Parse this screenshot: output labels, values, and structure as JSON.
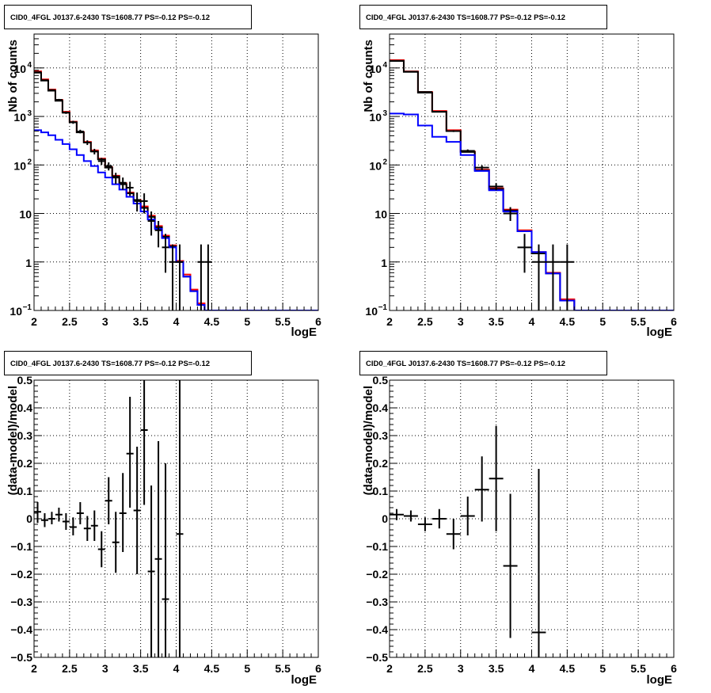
{
  "chart_data": [
    {
      "type": "step-histogram",
      "title": "CID0_4FGL J0137.6-2430 TS=1608.77 PS=-0.12 PS=-0.12",
      "xlabel": "logE",
      "ylabel": "Nb of counts",
      "xlim": [
        2,
        6
      ],
      "ylim": [
        0.1,
        50000
      ],
      "yscale": "log",
      "grid": true,
      "x_ticks": [
        "2",
        "2.5",
        "3",
        "3.5",
        "4",
        "4.5",
        "5",
        "5.5",
        "6"
      ],
      "y_ticks": [
        {
          "value": 0.1,
          "label": "10",
          "sup": "−1"
        },
        {
          "value": 1,
          "label": "1",
          "sup": ""
        },
        {
          "value": 10,
          "label": "10",
          "sup": ""
        },
        {
          "value": 100,
          "label": "10",
          "sup": "2"
        },
        {
          "value": 1000,
          "label": "10",
          "sup": "3"
        },
        {
          "value": 10000,
          "label": "10",
          "sup": "4"
        }
      ],
      "bin_edges": [
        2,
        2.1,
        2.2,
        2.3,
        2.4,
        2.5,
        2.6,
        2.7,
        2.8,
        2.9,
        3,
        3.1,
        3.2,
        3.3,
        3.4,
        3.5,
        3.6,
        3.7,
        3.8,
        3.9,
        4,
        4.1,
        4.2,
        4.3,
        4.4,
        4.5,
        4.6,
        4.7,
        4.8,
        4.9,
        5,
        5.1,
        5.2,
        5.3,
        5.4,
        5.5,
        5.6,
        5.7,
        5.8,
        5.9,
        6
      ],
      "series": [
        {
          "color": "#ff0000",
          "values": [
            8500,
            5800,
            3600,
            2200,
            1250,
            780,
            480,
            300,
            200,
            135,
            90,
            60,
            42,
            27,
            19,
            14,
            9,
            5.5,
            3.5,
            2.2,
            1.05,
            0.55,
            0.27,
            0.14,
            0.1,
            0.1,
            0.1,
            0.1,
            0.1,
            0.1,
            0.1,
            0.1,
            0.1,
            0.1,
            0.1,
            0.1,
            0.1,
            0.1,
            0.1,
            0.1
          ]
        },
        {
          "color": "#000000",
          "values": [
            8000,
            5500,
            3400,
            2100,
            1200,
            760,
            470,
            290,
            190,
            130,
            88,
            58,
            40,
            26,
            18,
            13,
            8.5,
            5.2,
            3.3,
            2.1,
            1,
            0.5,
            0.25,
            0.13,
            0.1,
            0.1,
            0.1,
            0.1,
            0.1,
            0.1,
            0.1,
            0.1,
            0.1,
            0.1,
            0.1,
            0.1,
            0.1,
            0.1,
            0.1,
            0.1
          ]
        },
        {
          "color": "#0000ff",
          "values": [
            520,
            470,
            410,
            330,
            270,
            210,
            160,
            120,
            95,
            70,
            55,
            40,
            31,
            22,
            16,
            11,
            7.5,
            4.8,
            3.1,
            2,
            1,
            0.5,
            0.25,
            0.13,
            0.1,
            0.1,
            0.1,
            0.1,
            0.1,
            0.1,
            0.1,
            0.1,
            0.1,
            0.1,
            0.1,
            0.1,
            0.1,
            0.1,
            0.1,
            0.1
          ]
        }
      ],
      "data_points": [
        {
          "x": 2.05,
          "y": 8200,
          "xerr": 0.05,
          "ylo": 8020,
          "yhi": 8380
        },
        {
          "x": 2.15,
          "y": 5600,
          "xerr": 0.05,
          "ylo": 5450,
          "yhi": 5750
        },
        {
          "x": 2.25,
          "y": 3500,
          "xerr": 0.05,
          "ylo": 3380,
          "yhi": 3620
        },
        {
          "x": 2.35,
          "y": 2200,
          "xerr": 0.05,
          "ylo": 2100,
          "yhi": 2300
        },
        {
          "x": 2.45,
          "y": 1200,
          "xerr": 0.05,
          "ylo": 1130,
          "yhi": 1270
        },
        {
          "x": 2.55,
          "y": 760,
          "xerr": 0.05,
          "ylo": 705,
          "yhi": 815
        },
        {
          "x": 2.65,
          "y": 490,
          "xerr": 0.05,
          "ylo": 448,
          "yhi": 532
        },
        {
          "x": 2.75,
          "y": 290,
          "xerr": 0.05,
          "ylo": 258,
          "yhi": 322
        },
        {
          "x": 2.85,
          "y": 190,
          "xerr": 0.05,
          "ylo": 165,
          "yhi": 215
        },
        {
          "x": 2.95,
          "y": 120,
          "xerr": 0.05,
          "ylo": 100,
          "yhi": 140
        },
        {
          "x": 3.05,
          "y": 95,
          "xerr": 0.05,
          "ylo": 77,
          "yhi": 113
        },
        {
          "x": 3.15,
          "y": 55,
          "xerr": 0.05,
          "ylo": 41,
          "yhi": 69
        },
        {
          "x": 3.25,
          "y": 43,
          "xerr": 0.05,
          "ylo": 31,
          "yhi": 55
        },
        {
          "x": 3.35,
          "y": 34,
          "xerr": 0.05,
          "ylo": 23,
          "yhi": 45
        },
        {
          "x": 3.45,
          "y": 19,
          "xerr": 0.05,
          "ylo": 11,
          "yhi": 27
        },
        {
          "x": 3.55,
          "y": 18,
          "xerr": 0.05,
          "ylo": 10,
          "yhi": 26
        },
        {
          "x": 3.65,
          "y": 7,
          "xerr": 0.05,
          "ylo": 3.5,
          "yhi": 11
        },
        {
          "x": 3.75,
          "y": 4.5,
          "xerr": 0.05,
          "ylo": 2,
          "yhi": 7
        },
        {
          "x": 3.85,
          "y": 2,
          "xerr": 0.05,
          "ylo": 0.6,
          "yhi": 3.8
        },
        {
          "x": 3.95,
          "y": 1,
          "xerr": 0.05,
          "ylo": 0.1,
          "yhi": 2.3
        },
        {
          "x": 4.05,
          "y": 1,
          "xerr": 0.05,
          "ylo": 0.1,
          "yhi": 2.3
        },
        {
          "x": 4.35,
          "y": 1,
          "xerr": 0.05,
          "ylo": 0.1,
          "yhi": 2.3
        },
        {
          "x": 4.45,
          "y": 1,
          "xerr": 0.05,
          "ylo": 0.1,
          "yhi": 2.3
        }
      ]
    },
    {
      "type": "step-histogram",
      "title": "CID0_4FGL J0137.6-2430 TS=1608.77 PS=-0.12 PS=-0.12",
      "xlabel": "logE",
      "ylabel": "Nb of counts",
      "xlim": [
        2,
        6
      ],
      "ylim": [
        0.1,
        50000
      ],
      "yscale": "log",
      "grid": true,
      "x_ticks": [
        "2",
        "2.5",
        "3",
        "3.5",
        "4",
        "4.5",
        "5",
        "5.5",
        "6"
      ],
      "y_ticks": [
        {
          "value": 0.1,
          "label": "10",
          "sup": "−1"
        },
        {
          "value": 1,
          "label": "1",
          "sup": ""
        },
        {
          "value": 10,
          "label": "10",
          "sup": ""
        },
        {
          "value": 100,
          "label": "10",
          "sup": "2"
        },
        {
          "value": 1000,
          "label": "10",
          "sup": "3"
        },
        {
          "value": 10000,
          "label": "10",
          "sup": "4"
        }
      ],
      "bin_edges": [
        2,
        2.2,
        2.4,
        2.6,
        2.8,
        3,
        3.2,
        3.4,
        3.6,
        3.8,
        4,
        4.2,
        4.4,
        4.6,
        4.8,
        5,
        5.2,
        5.4,
        5.6,
        5.8,
        6
      ],
      "series": [
        {
          "color": "#ff0000",
          "values": [
            14500,
            8500,
            3200,
            1300,
            520,
            190,
            80,
            33,
            12,
            4.5,
            1.6,
            0.6,
            0.17,
            0.1,
            0.1,
            0.1,
            0.1,
            0.1,
            0.1,
            0.1
          ]
        },
        {
          "color": "#000000",
          "values": [
            14000,
            8300,
            3100,
            1250,
            500,
            185,
            77,
            32,
            11.5,
            4.3,
            1.5,
            0.58,
            0.16,
            0.1,
            0.1,
            0.1,
            0.1,
            0.1,
            0.1,
            0.1
          ]
        },
        {
          "color": "#0000ff",
          "values": [
            1150,
            1100,
            650,
            380,
            300,
            160,
            75,
            30,
            11,
            4.3,
            1.6,
            0.58,
            0.16,
            0.1,
            0.1,
            0.1,
            0.1,
            0.1,
            0.1,
            0.1
          ]
        }
      ],
      "data_points": [
        {
          "x": 2.1,
          "y": 14000,
          "xerr": 0.1,
          "ylo": 13880,
          "yhi": 14120
        },
        {
          "x": 2.3,
          "y": 8400,
          "xerr": 0.1,
          "ylo": 8300,
          "yhi": 8500
        },
        {
          "x": 2.5,
          "y": 3200,
          "xerr": 0.1,
          "ylo": 3140,
          "yhi": 3260
        },
        {
          "x": 2.7,
          "y": 1250,
          "xerr": 0.1,
          "ylo": 1210,
          "yhi": 1290
        },
        {
          "x": 2.9,
          "y": 500,
          "xerr": 0.1,
          "ylo": 478,
          "yhi": 522
        },
        {
          "x": 3.1,
          "y": 195,
          "xerr": 0.1,
          "ylo": 181,
          "yhi": 209
        },
        {
          "x": 3.3,
          "y": 88,
          "xerr": 0.1,
          "ylo": 78,
          "yhi": 98
        },
        {
          "x": 3.5,
          "y": 36,
          "xerr": 0.1,
          "ylo": 30,
          "yhi": 42
        },
        {
          "x": 3.7,
          "y": 10,
          "xerr": 0.1,
          "ylo": 7,
          "yhi": 13.5
        },
        {
          "x": 3.9,
          "y": 2,
          "xerr": 0.1,
          "ylo": 0.6,
          "yhi": 3.8
        },
        {
          "x": 4.1,
          "y": 1,
          "xerr": 0.1,
          "ylo": 0.1,
          "yhi": 2.3
        },
        {
          "x": 4.3,
          "y": 1,
          "xerr": 0.1,
          "ylo": 0.1,
          "yhi": 2.3
        },
        {
          "x": 4.5,
          "y": 1,
          "xerr": 0.1,
          "ylo": 0.1,
          "yhi": 2.3
        }
      ]
    },
    {
      "type": "scatter-errorbars",
      "title": "CID0_4FGL J0137.6-2430 TS=1608.77 PS=-0.12 PS=-0.12",
      "xlabel": "logE",
      "ylabel": "(data-model)/model",
      "xlim": [
        2,
        6
      ],
      "ylim": [
        -0.5,
        0.5
      ],
      "grid": true,
      "x_ticks": [
        "2",
        "2.5",
        "3",
        "3.5",
        "4",
        "4.5",
        "5",
        "5.5",
        "6"
      ],
      "y_ticks": [
        "−0.5",
        "−0.4",
        "−0.3",
        "−0.2",
        "−0.1",
        "0",
        "0.1",
        "0.2",
        "0.3",
        "0.4",
        "0.5"
      ],
      "data_points": [
        {
          "x": 2.05,
          "y": 0.025,
          "xerr": 0.05,
          "ylo": -0.015,
          "yhi": 0.06
        },
        {
          "x": 2.15,
          "y": -0.005,
          "xerr": 0.05,
          "ylo": -0.03,
          "yhi": 0.02
        },
        {
          "x": 2.25,
          "y": 0.0,
          "xerr": 0.05,
          "ylo": -0.02,
          "yhi": 0.025
        },
        {
          "x": 2.35,
          "y": 0.015,
          "xerr": 0.05,
          "ylo": -0.01,
          "yhi": 0.04
        },
        {
          "x": 2.45,
          "y": -0.01,
          "xerr": 0.05,
          "ylo": -0.04,
          "yhi": 0.02
        },
        {
          "x": 2.55,
          "y": -0.03,
          "xerr": 0.05,
          "ylo": -0.06,
          "yhi": 0.005
        },
        {
          "x": 2.65,
          "y": 0.02,
          "xerr": 0.05,
          "ylo": -0.02,
          "yhi": 0.06
        },
        {
          "x": 2.75,
          "y": -0.035,
          "xerr": 0.05,
          "ylo": -0.08,
          "yhi": 0.01
        },
        {
          "x": 2.85,
          "y": -0.025,
          "xerr": 0.05,
          "ylo": -0.08,
          "yhi": 0.03
        },
        {
          "x": 2.95,
          "y": -0.11,
          "xerr": 0.05,
          "ylo": -0.175,
          "yhi": -0.045
        },
        {
          "x": 3.05,
          "y": 0.065,
          "xerr": 0.05,
          "ylo": -0.02,
          "yhi": 0.15
        },
        {
          "x": 3.15,
          "y": -0.085,
          "xerr": 0.05,
          "ylo": -0.195,
          "yhi": 0.025
        },
        {
          "x": 3.25,
          "y": 0.02,
          "xerr": 0.05,
          "ylo": -0.12,
          "yhi": 0.165
        },
        {
          "x": 3.35,
          "y": 0.235,
          "xerr": 0.05,
          "ylo": 0.04,
          "yhi": 0.44
        },
        {
          "x": 3.45,
          "y": 0.03,
          "xerr": 0.05,
          "ylo": -0.2,
          "yhi": 0.26
        },
        {
          "x": 3.55,
          "y": 0.32,
          "xerr": 0.05,
          "ylo": 0.05,
          "yhi": 0.5
        },
        {
          "x": 3.65,
          "y": -0.19,
          "xerr": 0.05,
          "ylo": -0.5,
          "yhi": 0.12
        },
        {
          "x": 3.75,
          "y": -0.145,
          "xerr": 0.05,
          "ylo": -0.5,
          "yhi": 0.28
        },
        {
          "x": 3.85,
          "y": -0.29,
          "xerr": 0.05,
          "ylo": -0.5,
          "yhi": 0.2
        },
        {
          "x": 4.05,
          "y": -0.055,
          "xerr": 0.05,
          "ylo": -0.5,
          "yhi": 0.5
        }
      ]
    },
    {
      "type": "scatter-errorbars",
      "title": "CID0_4FGL J0137.6-2430 TS=1608.77 PS=-0.12 PS=-0.12",
      "xlabel": "logE",
      "ylabel": "(data-model)/model",
      "xlim": [
        2,
        6
      ],
      "ylim": [
        -0.5,
        0.5
      ],
      "grid": true,
      "x_ticks": [
        "2",
        "2.5",
        "3",
        "3.5",
        "4",
        "4.5",
        "5",
        "5.5",
        "6"
      ],
      "y_ticks": [
        "−0.5",
        "−0.4",
        "−0.3",
        "−0.2",
        "−0.1",
        "0",
        "0.1",
        "0.2",
        "0.3",
        "0.4",
        "0.5"
      ],
      "data_points": [
        {
          "x": 2.1,
          "y": 0.015,
          "xerr": 0.1,
          "ylo": -0.005,
          "yhi": 0.035
        },
        {
          "x": 2.3,
          "y": 0.01,
          "xerr": 0.1,
          "ylo": -0.01,
          "yhi": 0.03
        },
        {
          "x": 2.5,
          "y": -0.02,
          "xerr": 0.1,
          "ylo": -0.045,
          "yhi": 0.005
        },
        {
          "x": 2.7,
          "y": 0.0,
          "xerr": 0.1,
          "ylo": -0.035,
          "yhi": 0.035
        },
        {
          "x": 2.9,
          "y": -0.055,
          "xerr": 0.1,
          "ylo": -0.11,
          "yhi": 0.0
        },
        {
          "x": 3.1,
          "y": 0.01,
          "xerr": 0.1,
          "ylo": -0.06,
          "yhi": 0.08
        },
        {
          "x": 3.3,
          "y": 0.105,
          "xerr": 0.1,
          "ylo": -0.01,
          "yhi": 0.225
        },
        {
          "x": 3.5,
          "y": 0.145,
          "xerr": 0.1,
          "ylo": -0.045,
          "yhi": 0.335
        },
        {
          "x": 3.7,
          "y": -0.17,
          "xerr": 0.1,
          "ylo": -0.43,
          "yhi": 0.09
        },
        {
          "x": 4.1,
          "y": -0.41,
          "xerr": 0.1,
          "ylo": -0.5,
          "yhi": 0.18
        }
      ]
    }
  ]
}
